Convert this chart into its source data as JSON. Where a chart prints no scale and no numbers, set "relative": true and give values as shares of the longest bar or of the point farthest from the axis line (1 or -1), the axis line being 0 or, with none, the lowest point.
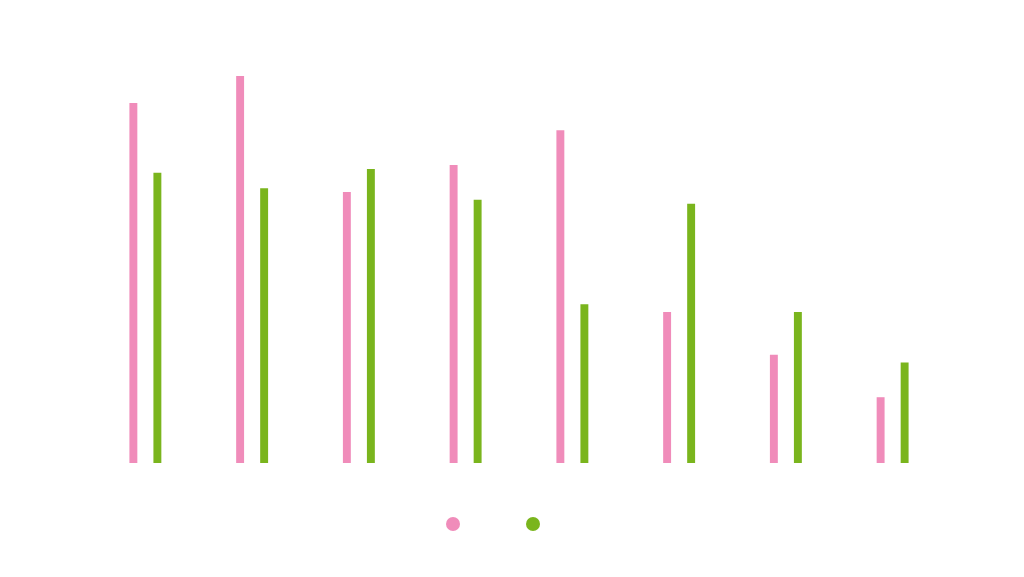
{
  "chart_data": {
    "type": "bar",
    "relative": true,
    "categories": [
      null,
      null,
      null,
      null,
      null,
      null,
      null,
      null
    ],
    "grid": false,
    "series": [
      {
        "color": "#f08cba",
        "values": [
          0.93,
          1,
          0.7,
          0.77,
          0.86,
          0.39,
          0.28,
          0.17
        ]
      },
      {
        "color": "#7ab51d",
        "values": [
          0.75,
          0.71,
          0.76,
          0.68,
          0.41,
          0.67,
          0.39,
          0.26
        ]
      }
    ]
  }
}
